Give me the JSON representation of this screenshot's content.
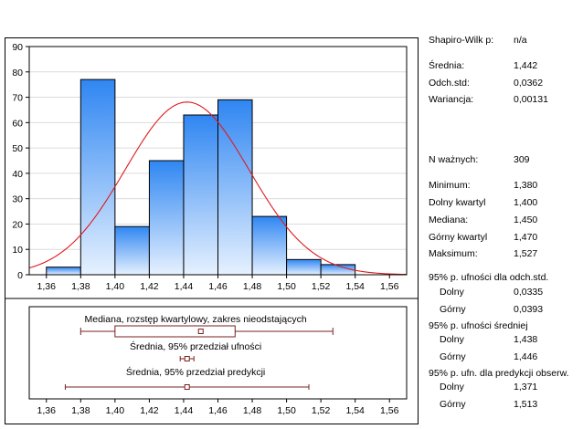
{
  "chart_data": [
    {
      "type": "bar",
      "subtype": "histogram",
      "x_ticks": [
        "1,36",
        "1,38",
        "1,40",
        "1,42",
        "1,44",
        "1,46",
        "1,48",
        "1,50",
        "1,52",
        "1,54",
        "1,56"
      ],
      "y_ticks": [
        "0",
        "10",
        "20",
        "30",
        "40",
        "50",
        "60",
        "70",
        "80",
        "90"
      ],
      "ylim": [
        0,
        90
      ],
      "xlim": [
        1.35,
        1.57
      ],
      "bins": [
        {
          "from": 1.36,
          "to": 1.38,
          "count": 3
        },
        {
          "from": 1.38,
          "to": 1.4,
          "count": 77
        },
        {
          "from": 1.4,
          "to": 1.42,
          "count": 19
        },
        {
          "from": 1.42,
          "to": 1.44,
          "count": 45
        },
        {
          "from": 1.44,
          "to": 1.46,
          "count": 63
        },
        {
          "from": 1.46,
          "to": 1.48,
          "count": 69
        },
        {
          "from": 1.48,
          "to": 1.5,
          "count": 23
        },
        {
          "from": 1.5,
          "to": 1.52,
          "count": 6
        },
        {
          "from": 1.52,
          "to": 1.54,
          "count": 4
        },
        {
          "from": 1.54,
          "to": 1.56,
          "count": 0
        }
      ],
      "normal_curve": {
        "mean": 1.442,
        "sd": 0.0362,
        "n": 309,
        "bin_width": 0.02
      },
      "grid": true,
      "colors": {
        "bar_top": "#2f86f2",
        "bar_bottom": "#e6f1ff",
        "curve": "#e0181e"
      }
    },
    {
      "type": "box",
      "x_ticks": [
        "1,36",
        "1,38",
        "1,40",
        "1,42",
        "1,44",
        "1,46",
        "1,48",
        "1,50",
        "1,52",
        "1,54",
        "1,56"
      ],
      "xlim": [
        1.35,
        1.57
      ],
      "items": [
        {
          "label": "Mediana, rozstęp kwartylowy, zakres nieodstających",
          "whisker_low": 1.38,
          "q1": 1.4,
          "median": 1.45,
          "q3": 1.47,
          "whisker_high": 1.527
        },
        {
          "label": "Średnia, 95% przedział ufności",
          "low": 1.438,
          "center": 1.442,
          "high": 1.446
        },
        {
          "label": "Średnia, 95% przedział predykcji",
          "low": 1.371,
          "center": 1.442,
          "high": 1.513
        }
      ],
      "colors": {
        "line": "#7a2020"
      }
    }
  ],
  "stats": {
    "shapiro_label": "Shapiro-Wilk p:",
    "shapiro_value": "n/a",
    "mean_label": "Średnia:",
    "mean_value": "1,442",
    "sd_label": "Odch.std:",
    "sd_value": "0,0362",
    "var_label": "Wariancja:",
    "var_value": "0,00131",
    "n_label": "N ważnych:",
    "n_value": "309",
    "min_label": "Minimum:",
    "min_value": "1,380",
    "q1_label": "Dolny kwartyl",
    "q1_value": "1,400",
    "median_label": "Mediana:",
    "median_value": "1,450",
    "q3_label": "Górny kwartyl",
    "q3_value": "1,470",
    "max_label": "Maksimum:",
    "max_value": "1,527",
    "ci_sd_head": "95% p. ufności dla odch.std.",
    "ci_sd_low_label": "Dolny",
    "ci_sd_low_value": "0,0335",
    "ci_sd_high_label": "Górny",
    "ci_sd_high_value": "0,0393",
    "ci_mean_head": "95% p. ufności średniej",
    "ci_mean_low_label": "Dolny",
    "ci_mean_low_value": "1,438",
    "ci_mean_high_label": "Górny",
    "ci_mean_high_value": "1,446",
    "pi_head": "95% p. ufn. dla predykcji obserw.",
    "pi_low_label": "Dolny",
    "pi_low_value": "1,371",
    "pi_high_label": "Górny",
    "pi_high_value": "1,513"
  }
}
